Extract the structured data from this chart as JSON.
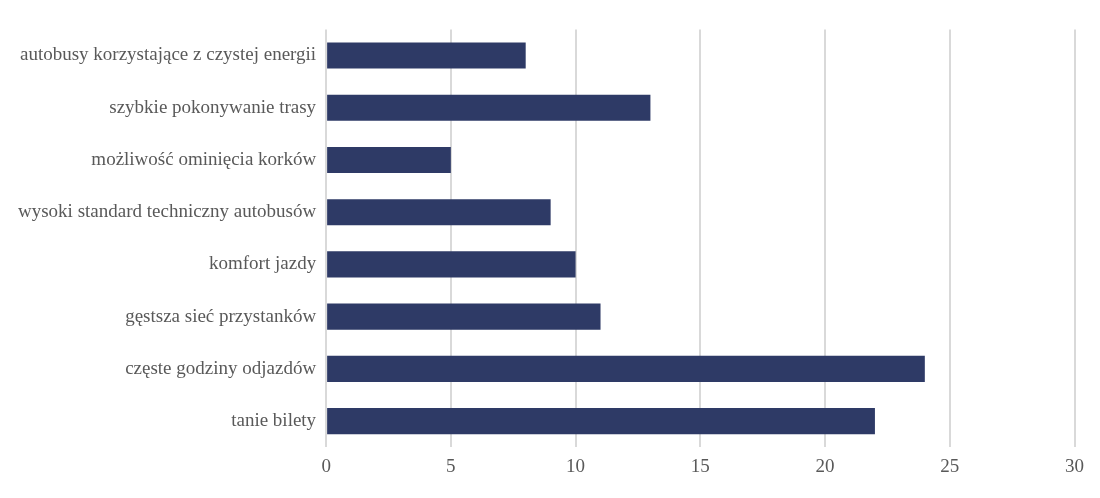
{
  "chart_data": {
    "type": "bar",
    "orientation": "horizontal",
    "categories": [
      "autobusy korzystające z czystej energii",
      "szybkie pokonywanie trasy",
      "możliwość ominięcia korków",
      "wysoki standard techniczny autobusów",
      "komfort jazdy",
      "gęstsza sieć przystanków",
      "częste godziny odjazdów",
      "tanie bilety"
    ],
    "values": [
      8,
      13,
      5,
      9,
      10,
      11,
      24,
      22
    ],
    "color": "#2e3a66",
    "xlim": [
      0,
      30
    ],
    "xticks": [
      0,
      5,
      10,
      15,
      20,
      25,
      30
    ],
    "grid": "x"
  }
}
